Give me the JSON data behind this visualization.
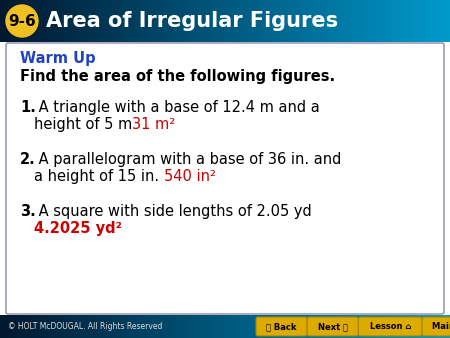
{
  "header_gradient_left": "#001830",
  "header_gradient_right": "#0099CC",
  "header_text_color": "#FFFFFF",
  "badge_bg_color": "#F0C020",
  "badge_text_color": "#000000",
  "badge_text": "9-6",
  "header_title": "Area of Irregular Figures",
  "content_bg": "#FFFFFF",
  "content_border_color": "#8888AA",
  "warm_up_label": "Warm Up",
  "warm_up_color": "#2244BB",
  "subtitle": "Find the area of the following figures.",
  "item1_num": "1.",
  "item1_line1": " A triangle with a base of 12.4 m and a",
  "item1_line2": "height of 5 m",
  "item1_answer": "31 m²",
  "item2_num": "2.",
  "item2_line1": " A parallelogram with a base of 36 in. and",
  "item2_line2": "a height of 15 in.",
  "item2_answer": "540 in²",
  "item3_num": "3.",
  "item3_line1": " A square with side lengths of 2.05 yd",
  "item3_answer": "4.2025 yd²",
  "answer_color": "#CC0000",
  "footer_gradient_left": "#001830",
  "footer_gradient_right": "#0099CC",
  "footer_text": "© HOLT McDOUGAL. All Rights Reserved",
  "footer_text_color": "#DDDDDD",
  "footer_buttons": [
    "〈 Back",
    "Next 〉",
    "Lesson ⌂",
    "Main ⌂"
  ],
  "footer_button_bg": "#DDAA00",
  "footer_button_text_color": "#000000"
}
